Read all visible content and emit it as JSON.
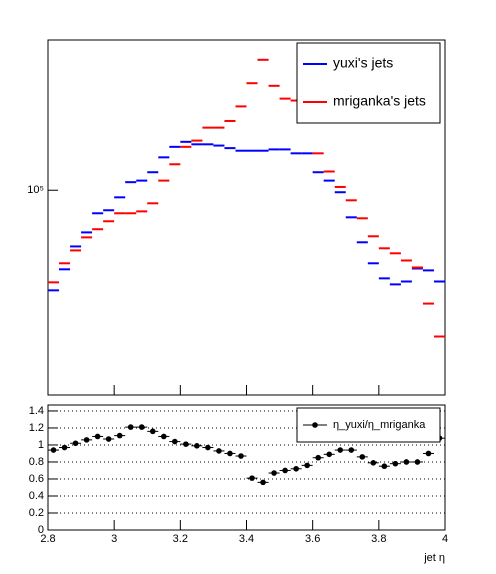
{
  "chart_data": [
    {
      "type": "histogram",
      "bins": [
        2.8,
        2.8333,
        2.8667,
        2.9,
        2.9333,
        2.9667,
        3,
        3.0333,
        3.0667,
        3.1,
        3.1333,
        3.1667,
        3.2,
        3.2333,
        3.2667,
        3.3,
        3.3333,
        3.3667,
        3.4,
        3.4333,
        3.4667,
        3.5,
        3.5333,
        3.5667,
        3.6,
        3.6333,
        3.6667,
        3.7,
        3.7333,
        3.7667,
        3.8,
        3.8333,
        3.8667,
        3.9,
        3.9333,
        3.9667,
        4
      ],
      "series": [
        {
          "name": "yuxi's jets",
          "color": "#0000ff",
          "values": [
            54600,
            62000,
            71200,
            77500,
            87000,
            88600,
            95800,
            105000,
            106000,
            111500,
            122000,
            130000,
            134000,
            132000,
            132000,
            131000,
            129000,
            127000,
            127000,
            127000,
            128000,
            128000,
            125000,
            125000,
            111500,
            106000,
            98800,
            84900,
            73000,
            64300,
            58700,
            56600,
            57600,
            62300,
            61600,
            57600
          ]
        },
        {
          "name": "mriganka's jets",
          "color": "#ff0000",
          "values": [
            57300,
            64300,
            69500,
            75200,
            79000,
            82900,
            87000,
            87000,
            88000,
            92400,
            106000,
            117000,
            130000,
            135000,
            146000,
            146000,
            152000,
            166000,
            191000,
            220000,
            188000,
            174000,
            172000,
            169000,
            125000,
            112000,
            102000,
            94100,
            84400,
            75700,
            70400,
            68300,
            65400,
            62700,
            50400,
            41300
          ]
        }
      ],
      "xlim": [
        2.8,
        4
      ],
      "ylim": [
        29000,
        248000
      ],
      "yticks": [
        {
          "value": 100000,
          "label": "10⁵"
        }
      ],
      "log_scale": true,
      "legend": "top-right"
    },
    {
      "type": "scatter",
      "x": [
        2.8167,
        2.85,
        2.8833,
        2.9167,
        2.95,
        2.9833,
        3.0167,
        3.05,
        3.0833,
        3.1167,
        3.15,
        3.1833,
        3.2167,
        3.25,
        3.2833,
        3.3167,
        3.35,
        3.3833,
        3.4167,
        3.45,
        3.4833,
        3.5167,
        3.55,
        3.5833,
        3.6167,
        3.65,
        3.6833,
        3.7167,
        3.75,
        3.7833,
        3.8167,
        3.85,
        3.8833,
        3.9167,
        3.95,
        3.9833
      ],
      "series": [
        {
          "name": "η_yuxi/η_mriganka",
          "color": "#000000",
          "values": [
            0.94,
            0.97,
            1.02,
            1.06,
            1.1,
            1.07,
            1.11,
            1.21,
            1.21,
            1.16,
            1.1,
            1.04,
            1.01,
            0.99,
            0.97,
            0.93,
            0.9,
            0.87,
            0.61,
            0.56,
            0.67,
            0.7,
            0.72,
            0.76,
            0.85,
            0.89,
            0.94,
            0.94,
            0.86,
            0.79,
            0.75,
            0.78,
            0.8,
            0.8,
            0.9,
            1.08
          ]
        }
      ],
      "xlim": [
        2.8,
        4
      ],
      "ylim": [
        0,
        1.47
      ],
      "xticks": [
        2.8,
        3,
        3.2,
        3.4,
        3.6,
        3.8,
        4
      ],
      "yticks": [
        0,
        0.2,
        0.4,
        0.6,
        0.8,
        1,
        1.2,
        1.4
      ],
      "xlabel": "jet η",
      "grid": true,
      "legend": "top-right"
    }
  ]
}
